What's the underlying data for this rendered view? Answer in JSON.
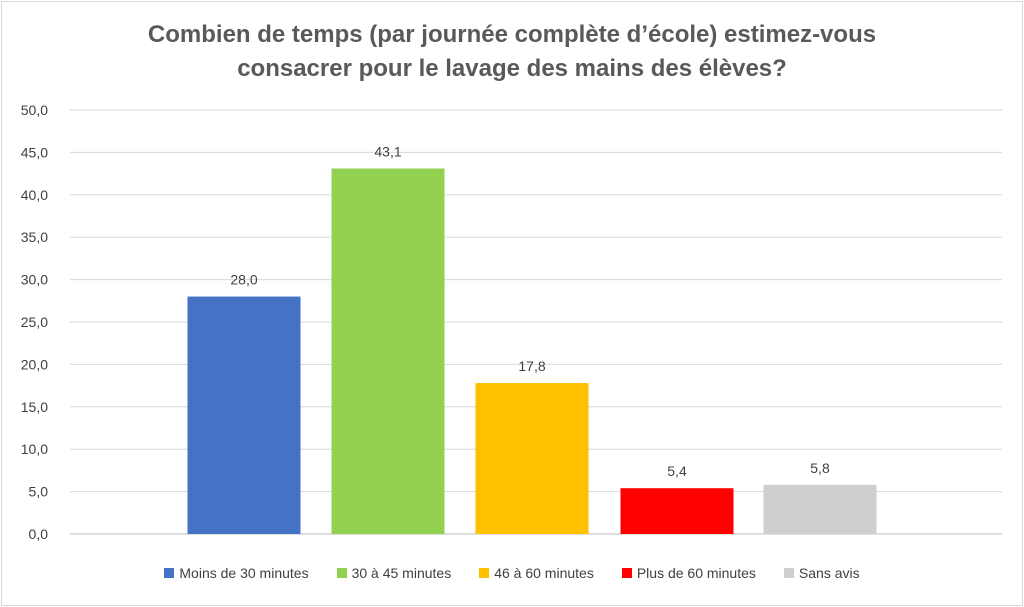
{
  "chart_data": {
    "type": "bar",
    "title_lines": [
      "Combien de temps (par journée complète d’école) estimez-vous",
      "consacrer pour le lavage des mains des élèves?"
    ],
    "xlabel": "",
    "ylabel": "",
    "ylim": [
      0,
      50
    ],
    "y_ticks": [
      "0,0",
      "5,0",
      "10,0",
      "15,0",
      "20,0",
      "25,0",
      "30,0",
      "35,0",
      "40,0",
      "45,0",
      "50,0"
    ],
    "categories": [
      "Moins de 30 minutes",
      "30 à 45 minutes",
      "46 à 60 minutes",
      "Plus de 60 minutes",
      "Sans avis"
    ],
    "values": [
      28.0,
      43.1,
      17.8,
      5.4,
      5.8
    ],
    "value_labels": [
      "28,0",
      "43,1",
      "17,8",
      "5,4",
      "5,8"
    ],
    "colors": [
      "#4472c4",
      "#92d050",
      "#ffc000",
      "#ff0000",
      "#d0cece"
    ],
    "grid": true,
    "legend_position": "bottom"
  }
}
